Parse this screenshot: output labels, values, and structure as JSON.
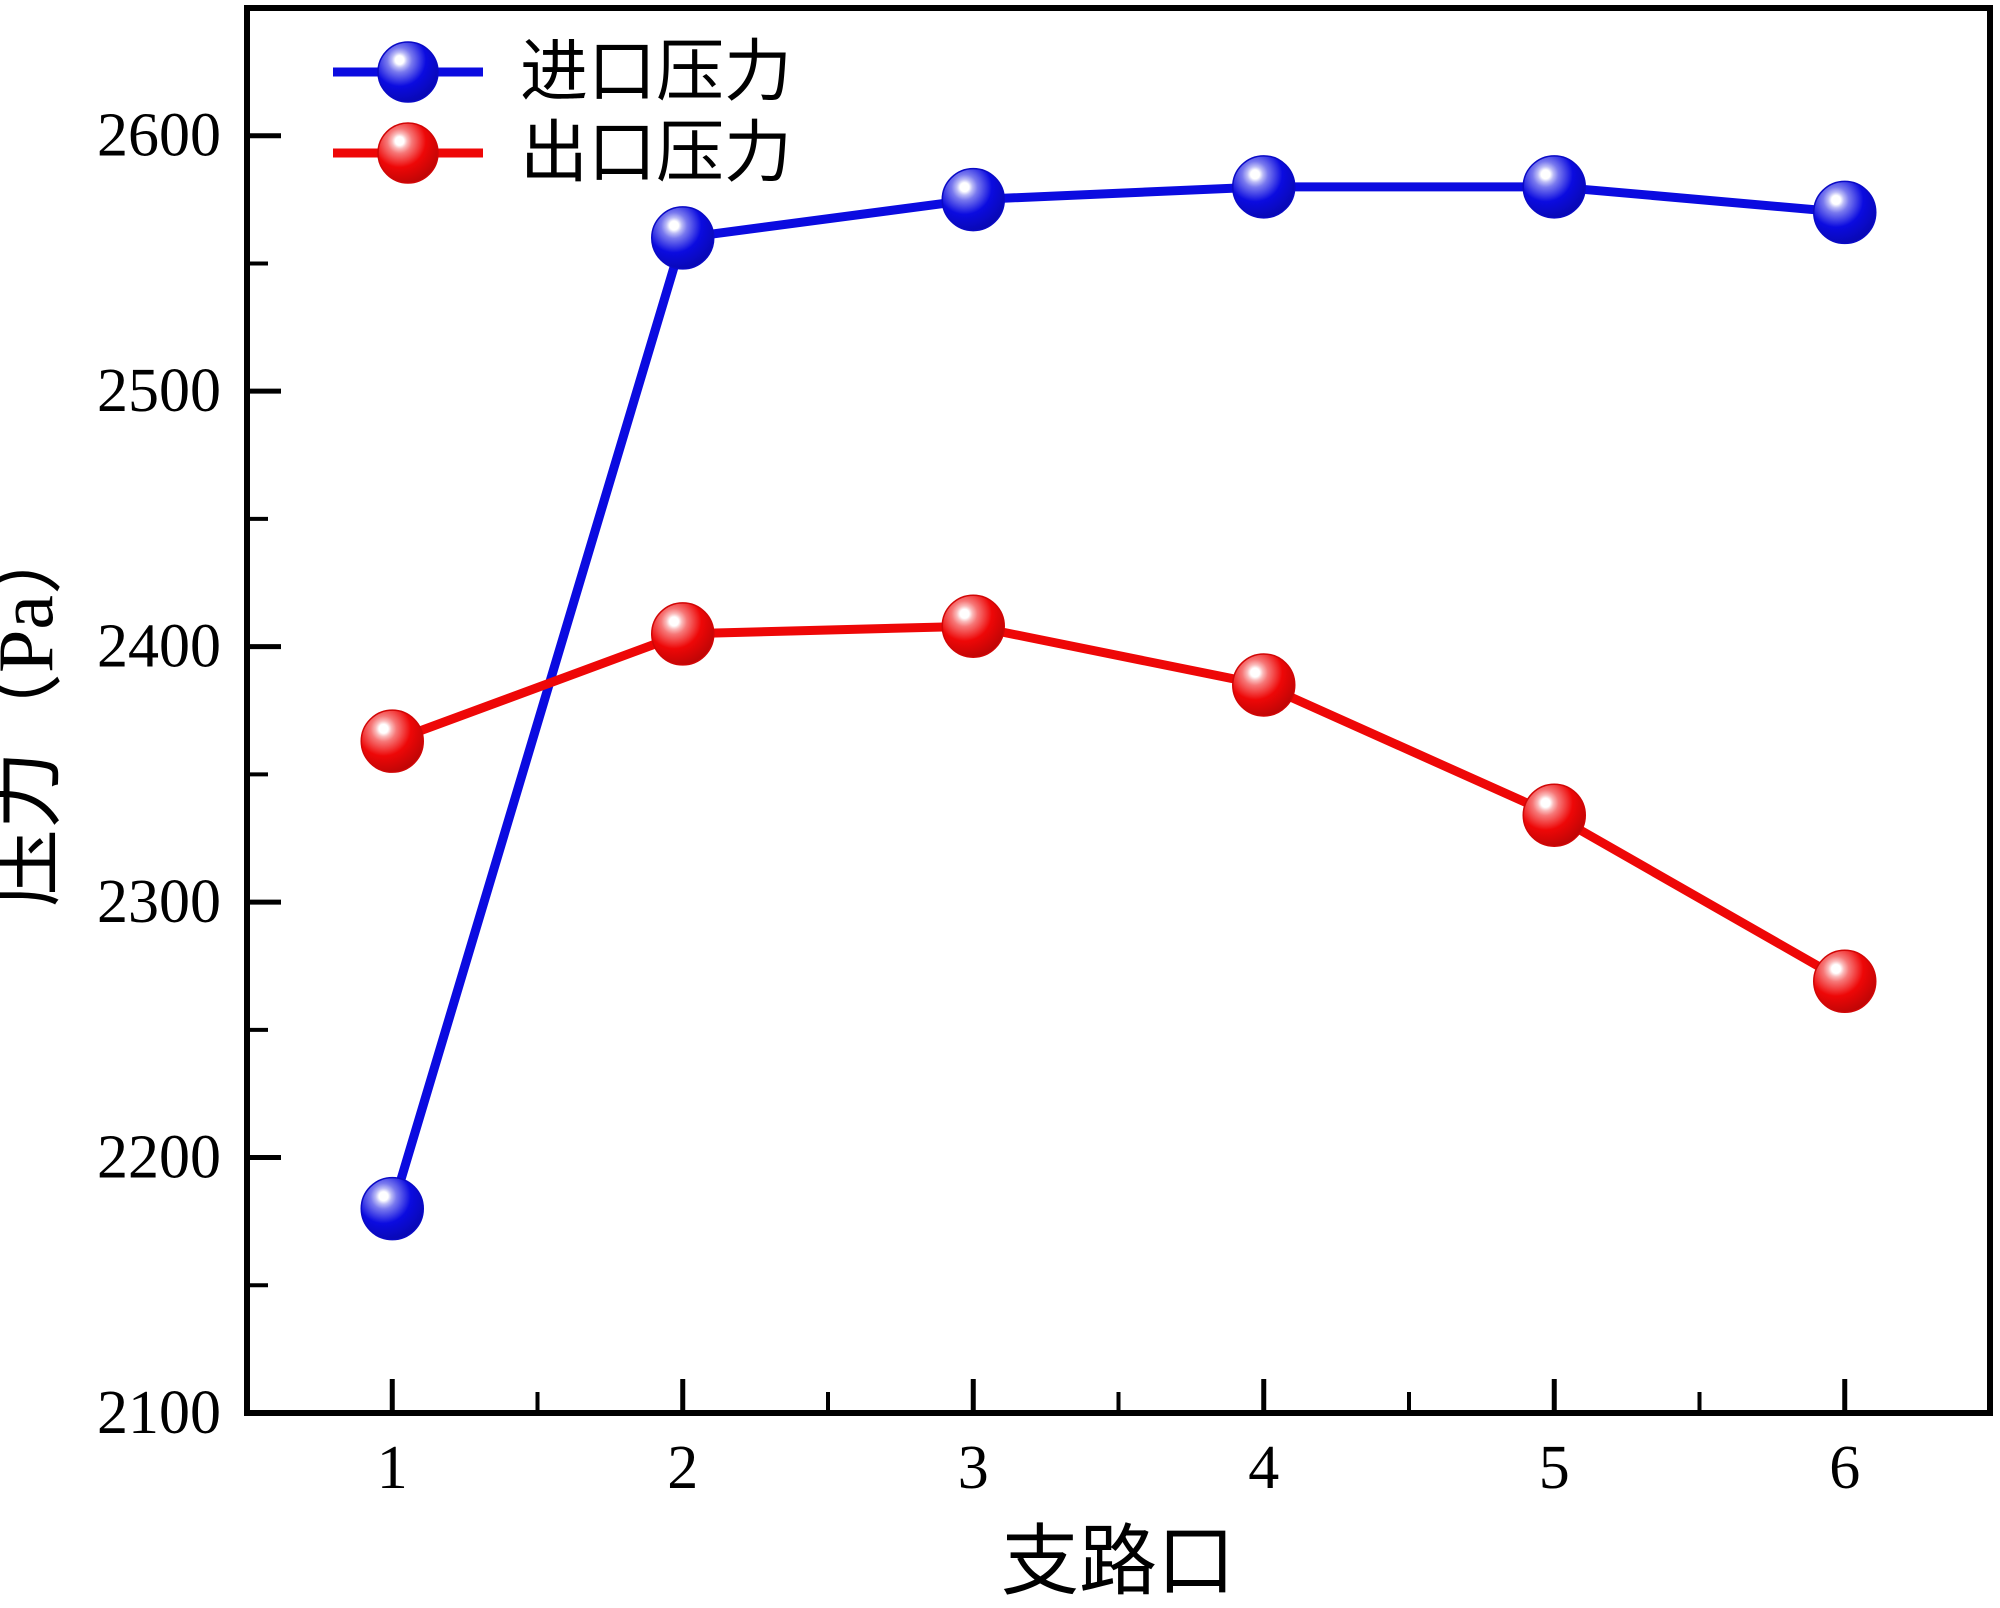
{
  "chart_data": {
    "type": "line",
    "title": "",
    "xlabel": "支路口",
    "ylabel": "压力（Pa）",
    "x": [
      1,
      2,
      3,
      4,
      5,
      6
    ],
    "series": [
      {
        "name": "进口压力",
        "color": "#0b0be0",
        "values": [
          2180,
          2560,
          2575,
          2580,
          2580,
          2570
        ]
      },
      {
        "name": "出口压力",
        "color": "#ee0707",
        "values": [
          2363,
          2405,
          2408,
          2385,
          2334,
          2269
        ]
      }
    ],
    "xlim": [
      0.5,
      6.5
    ],
    "ylim": [
      2100,
      2650
    ],
    "y_major_ticks": [
      2100,
      2200,
      2300,
      2400,
      2500,
      2600
    ],
    "y_minor_ticks": [
      2150,
      2250,
      2350,
      2450,
      2550
    ],
    "x_major_ticks": [
      1,
      2,
      3,
      4,
      5,
      6
    ],
    "x_minor_ticks": [
      1.5,
      2.5,
      3.5,
      4.5,
      5.5
    ],
    "grid": false,
    "legend_position": "top-left",
    "marker_style": "glossy-sphere",
    "axis_color": "#000000",
    "background_color": "#ffffff"
  }
}
